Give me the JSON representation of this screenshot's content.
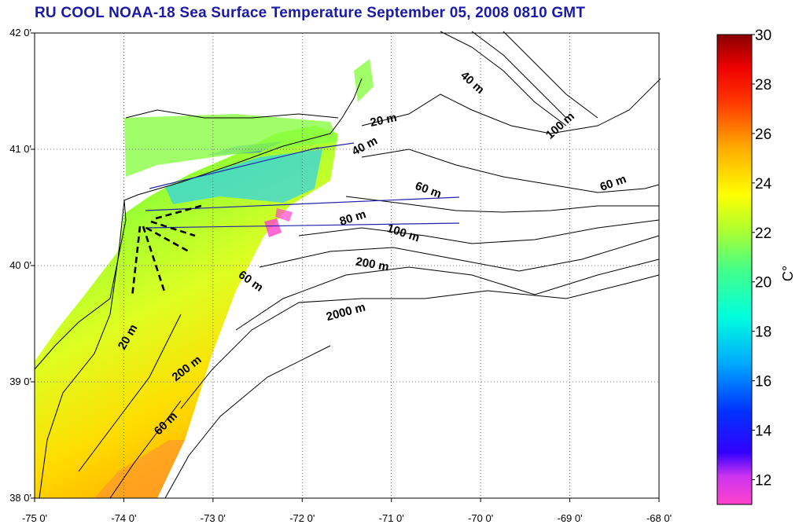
{
  "title": "RU COOL  NOAA-18 Sea Surface Temperature September 05, 2008 0810 GMT",
  "map": {
    "lon_range": [
      -75,
      -68
    ],
    "lat_range": [
      38,
      42
    ],
    "lon_ticks": [
      {
        "value": -75,
        "label": "-75 0'"
      },
      {
        "value": -74,
        "label": "-74 0'"
      },
      {
        "value": -73,
        "label": "-73 0'"
      },
      {
        "value": -72,
        "label": "-72 0'"
      },
      {
        "value": -71,
        "label": "-71 0'"
      },
      {
        "value": -70,
        "label": "-70 0'"
      },
      {
        "value": -69,
        "label": "-69 0'"
      },
      {
        "value": -68,
        "label": "-68 0'"
      }
    ],
    "lat_ticks": [
      {
        "value": 42,
        "label": "42 0'"
      },
      {
        "value": 41,
        "label": "41 0'"
      },
      {
        "value": 40,
        "label": "40 0'"
      },
      {
        "value": 39,
        "label": "39 0'"
      },
      {
        "value": 38,
        "label": "38 0'"
      }
    ],
    "grid": "dotted",
    "contour_labels": [
      {
        "text": "40 m",
        "lon": -70.12,
        "lat": 41.55,
        "rot": 42
      },
      {
        "text": "20 m",
        "lon": -71.08,
        "lat": 41.22,
        "rot": -12
      },
      {
        "text": "40 m",
        "lon": -71.28,
        "lat": 41.0,
        "rot": -28
      },
      {
        "text": "100 m",
        "lon": -69.08,
        "lat": 41.18,
        "rot": -42
      },
      {
        "text": "60 m",
        "lon": -70.6,
        "lat": 40.62,
        "rot": 20
      },
      {
        "text": "60 m",
        "lon": -68.5,
        "lat": 40.68,
        "rot": -20
      },
      {
        "text": "80 m",
        "lon": -71.42,
        "lat": 40.38,
        "rot": -18
      },
      {
        "text": "100 m",
        "lon": -70.88,
        "lat": 40.25,
        "rot": 18
      },
      {
        "text": "200 m",
        "lon": -71.22,
        "lat": 39.98,
        "rot": 10
      },
      {
        "text": "60 m",
        "lon": -72.6,
        "lat": 39.84,
        "rot": 35
      },
      {
        "text": "2000 m",
        "lon": -71.5,
        "lat": 39.57,
        "rot": -15
      },
      {
        "text": "20 m",
        "lon": -73.92,
        "lat": 39.37,
        "rot": -60
      },
      {
        "text": "200 m",
        "lon": -73.27,
        "lat": 39.09,
        "rot": -38
      },
      {
        "text": "60 m",
        "lon": -73.5,
        "lat": 38.62,
        "rot": -45
      }
    ]
  },
  "colorbar": {
    "unit_label": "C°",
    "min": 11,
    "max": 30,
    "tick_labels": [
      "30",
      "28",
      "26",
      "24",
      "22",
      "20",
      "18",
      "16",
      "14",
      "12"
    ],
    "colors": [
      "#ff44cc",
      "#8800ff",
      "#0000ff",
      "#0066ff",
      "#00ddff",
      "#33ff99",
      "#ccff33",
      "#ffee00",
      "#ff8800",
      "#ff0000",
      "#880000"
    ]
  }
}
